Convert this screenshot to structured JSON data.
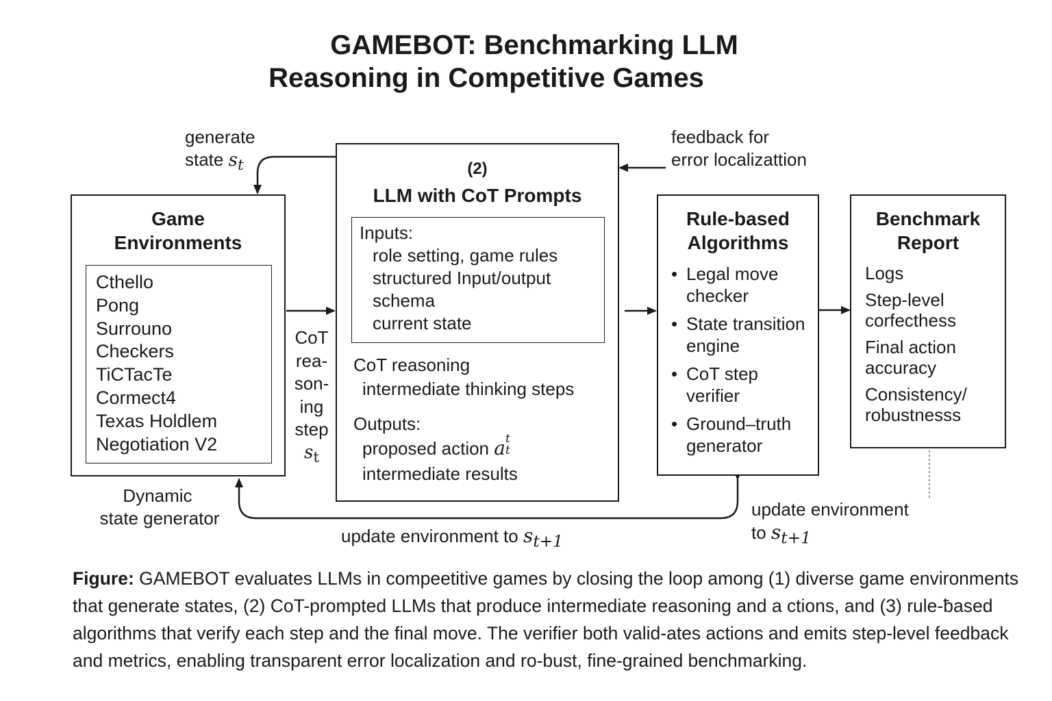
{
  "title": {
    "line1": "GAMEBOT: Benchmarking LLM",
    "line2": "Reasoning in Competitive Games"
  },
  "game_env": {
    "title_line1": "Game",
    "title_line2": "Environments",
    "games": [
      "Cthello",
      "Pong",
      "Surrouno",
      "Checkers",
      "TiCTacTe",
      "Cormect4",
      "Texas Holdlem",
      "Negotiation V2"
    ],
    "below_label_line1": "Dynamic",
    "below_label_line2": "state generator"
  },
  "llm": {
    "number": "(2)",
    "title": "LLM with CoT Prompts",
    "inputs_heading": "Inputs:",
    "inputs": [
      "role setting, game rules",
      "structured Input/output",
      "schema",
      "current state"
    ],
    "cot_heading": "CoT reasoning",
    "cot_item": "intermediate thinking steps",
    "outputs_heading": "Outputs:",
    "output_action": "proposed action",
    "output_action_symbol": "a",
    "output_action_sub": "t",
    "output_action_sup": "t",
    "output_results": "intermediate results"
  },
  "rules": {
    "title_line1": "Rule-based",
    "title_line2": "Algorithms",
    "bullets": [
      [
        "Legal move",
        "checker"
      ],
      [
        "State transition",
        "engine"
      ],
      [
        "CoT step",
        "verifier"
      ],
      [
        "Ground–truth",
        "generator"
      ]
    ]
  },
  "report": {
    "title_line1": "Benchmark",
    "title_line2": "Report",
    "items": [
      [
        "Logs"
      ],
      [
        "Step-level",
        "corfecthess"
      ],
      [
        "Final action",
        "accuracy"
      ],
      [
        "Consistency/",
        "robustnesss"
      ]
    ]
  },
  "labels": {
    "generate_line1": "generate",
    "generate_line2": "state",
    "generate_symbol": "s",
    "generate_sub": "t",
    "feedback_line1": "feedback for",
    "feedback_line2": "error localizattion",
    "cot_step": [
      "CoT",
      "rea-",
      "son-",
      "ing",
      "step"
    ],
    "cot_step_symbol": "s",
    "cot_step_sub": "t",
    "update_bottom": "update environment to",
    "update_right_line1": "update environment",
    "update_right_line2": "to",
    "update_symbol": "s",
    "update_sub": "t+1"
  },
  "caption": {
    "bold": "Figure:",
    "text": " GAMEBOT evaluates LLMs in compeetitive games by closing the loop among (1) diverse game environments that generate states, (2) CoT-prompted LLMs that produce intermediate reasoning and a ctions, and (3) rule-ƀased algorithms that verify each step and the final move. The verifier both valid-ates actions and emits step-level feedback and metrics, enabling transparent error localization and ro-bust, fine-grained benchmarking."
  }
}
